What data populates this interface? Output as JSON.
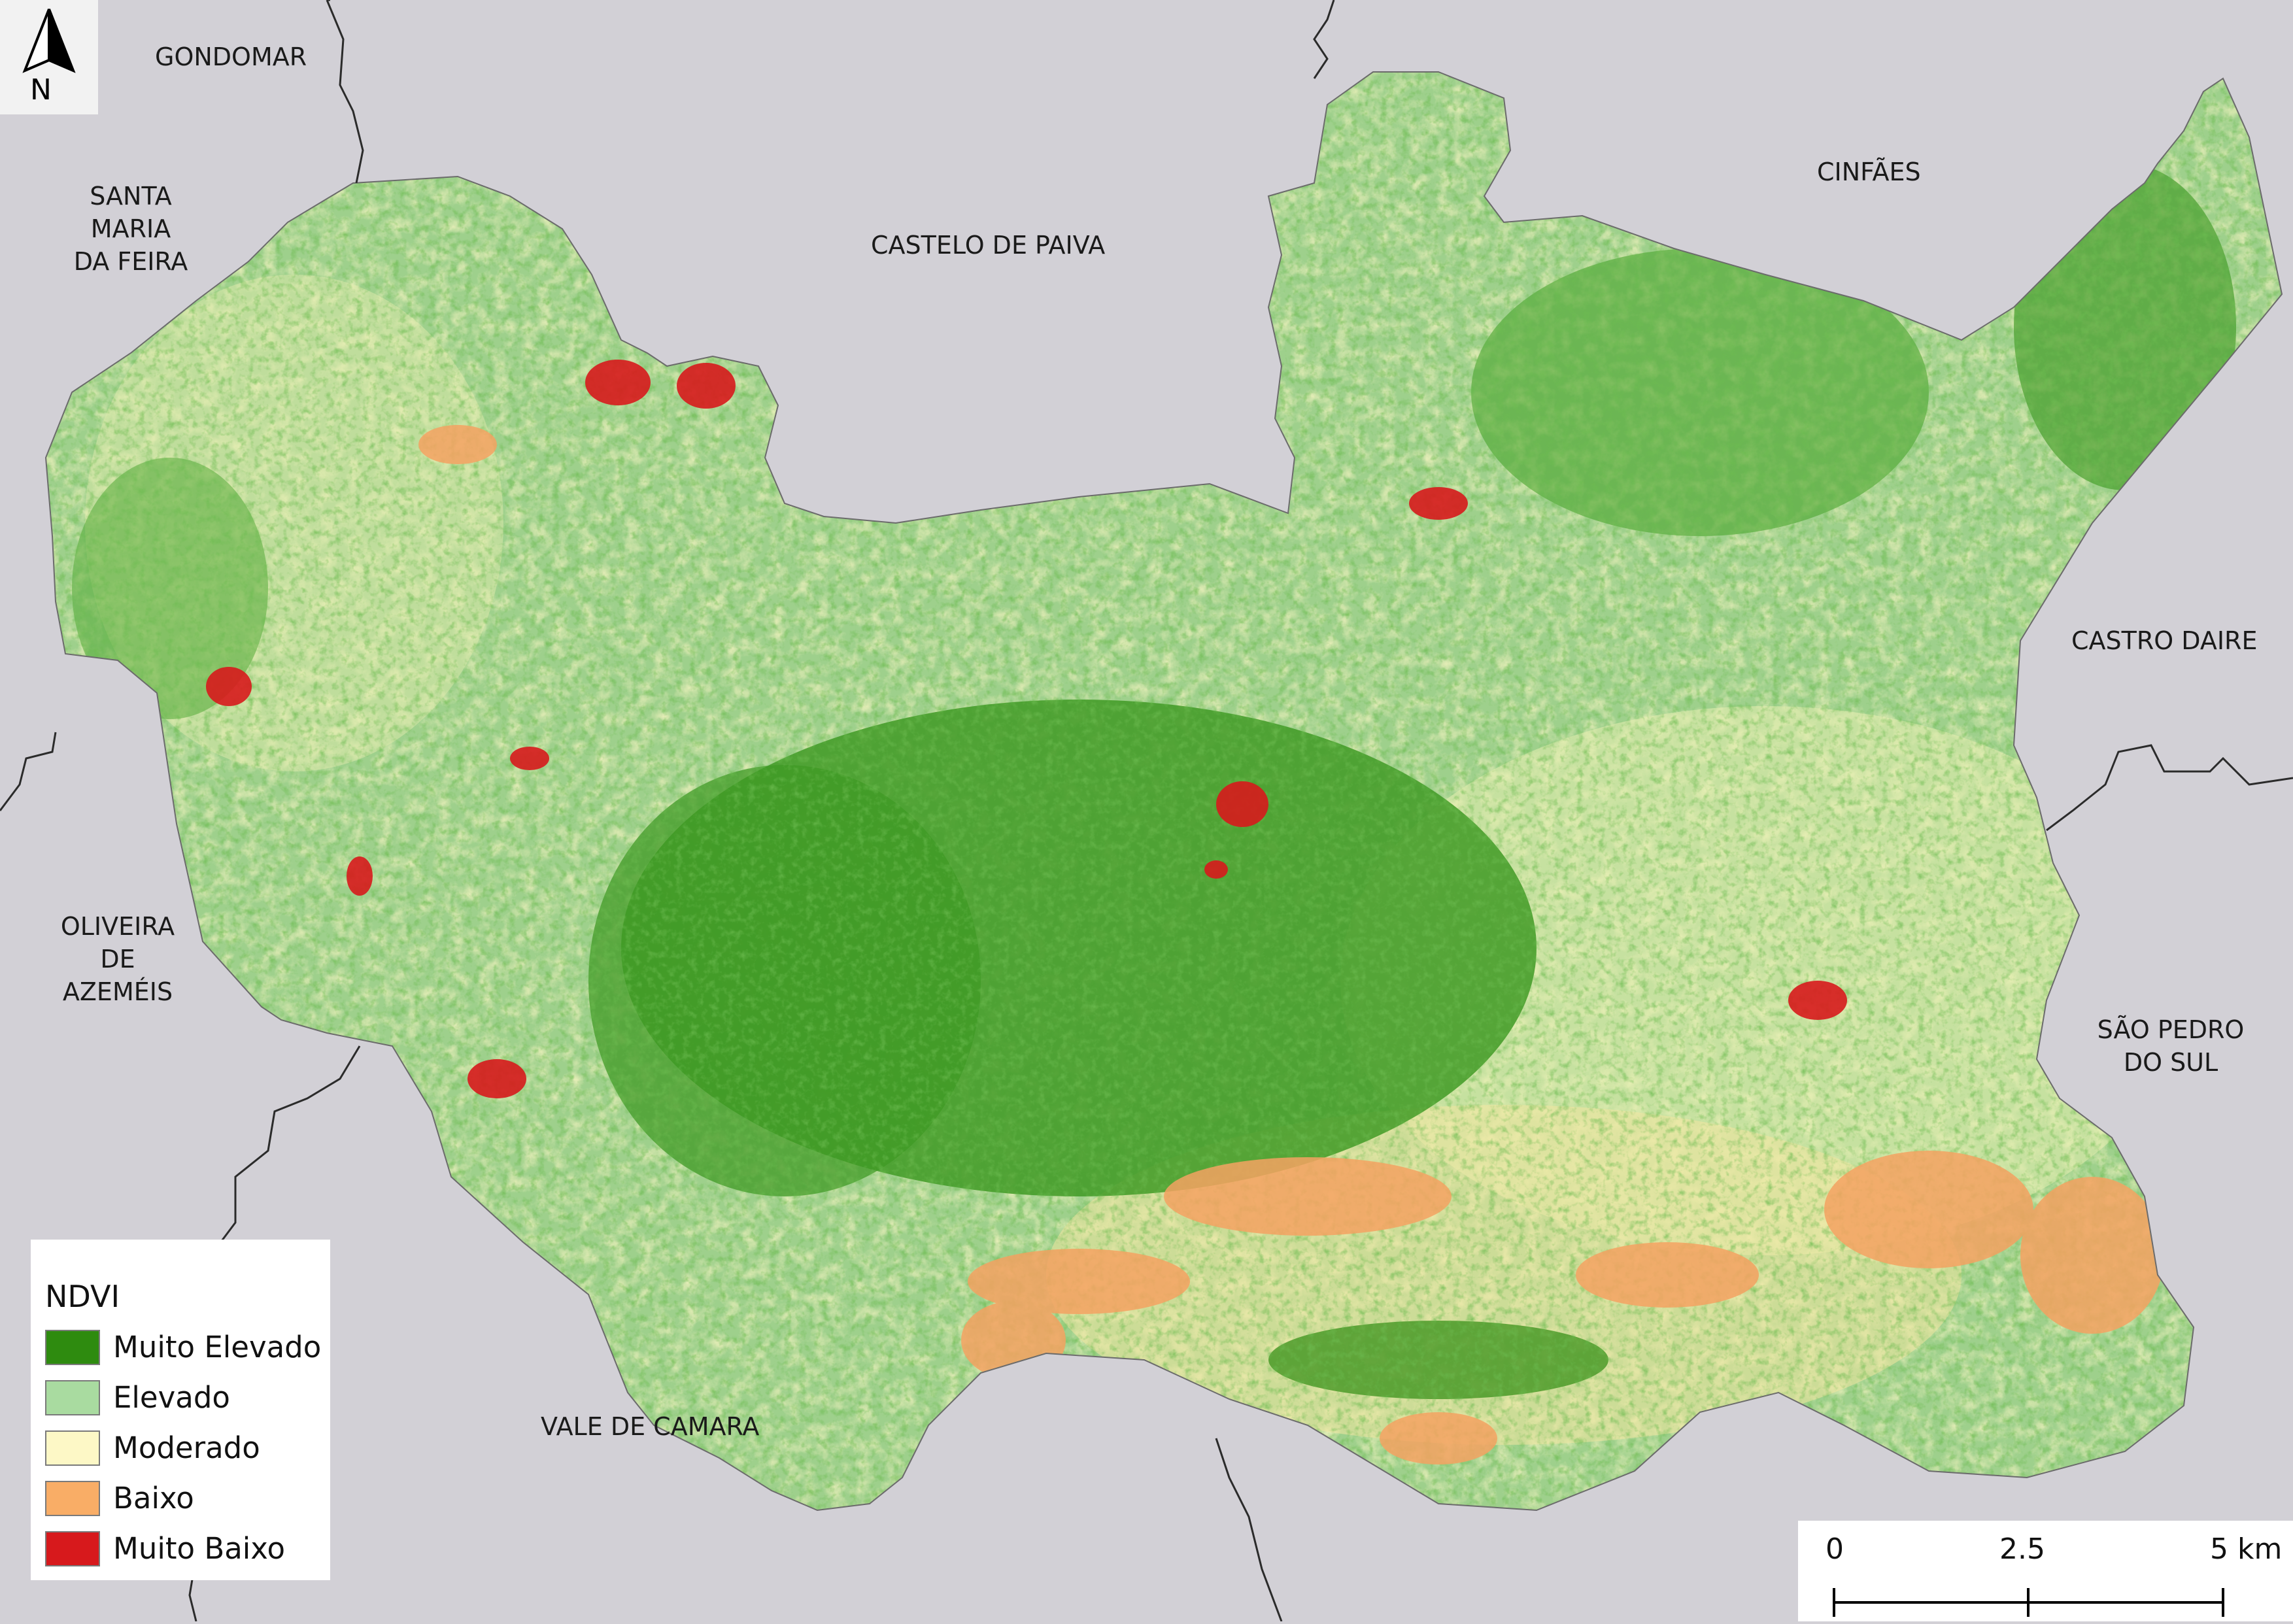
{
  "map": {
    "legend": {
      "title": "NDVI",
      "items": [
        {
          "label": "Muito Elevado",
          "color": "#2e8b0f"
        },
        {
          "label": "Elevado",
          "color": "#a9dba0"
        },
        {
          "label": "Moderado",
          "color": "#fdf8c6"
        },
        {
          "label": "Baixo",
          "color": "#f9ad66"
        },
        {
          "label": "Muito Baixo",
          "color": "#d7191c"
        }
      ]
    },
    "north_arrow": {
      "label": "N"
    },
    "scale_bar": {
      "labels": [
        "0",
        "2.5",
        "5 km"
      ]
    },
    "neighbors": [
      {
        "name": "GONDOMAR"
      },
      {
        "name": "SANTA\nMARIA\nDA FEIRA"
      },
      {
        "name": "CASTELO DE PAIVA"
      },
      {
        "name": "CINFÃES"
      },
      {
        "name": "CASTRO DAIRE"
      },
      {
        "name": "SÃO PEDRO\nDO SUL"
      },
      {
        "name": "OLIVEIRA\nDE\nAZEMÉIS"
      },
      {
        "name": "VALE DE CAMARA"
      }
    ],
    "colors": {
      "background": "#d2d0d6",
      "boundary": "#2b2b2b"
    }
  }
}
